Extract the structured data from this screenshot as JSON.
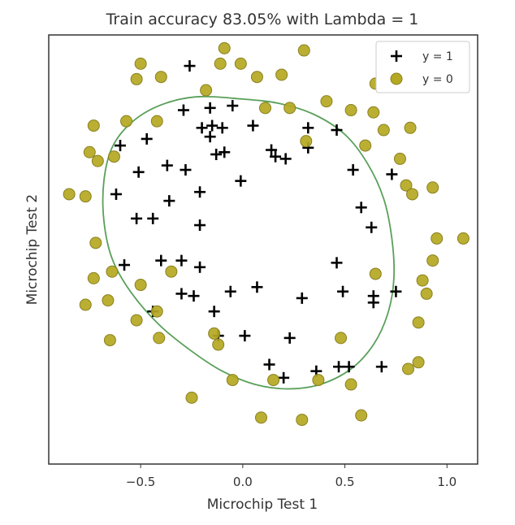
{
  "chart_data": {
    "type": "scatter",
    "title": "Train accuracy 83.05% with Lambda = 1",
    "xlabel": "Microchip Test 1",
    "ylabel": "Microchip Test 2",
    "xlim": [
      -0.95,
      1.15
    ],
    "ylim": [
      -0.82,
      1.12
    ],
    "xticks": [
      -0.5,
      0.0,
      0.5,
      1.0
    ],
    "xtick_labels": [
      "−0.5",
      "0.0",
      "0.5",
      "1.0"
    ],
    "yticks": [],
    "grid": false,
    "legend": {
      "position": "top-right",
      "entries": [
        {
          "label": "y = 1",
          "marker": "plus",
          "color": "#000000"
        },
        {
          "label": "y = 0",
          "marker": "circle",
          "color": "#b5a822"
        }
      ]
    },
    "series": [
      {
        "name": "y = 1",
        "marker": "plus",
        "color": "#000000",
        "points": [
          [
            -0.26,
            0.98
          ],
          [
            -0.29,
            0.78
          ],
          [
            -0.16,
            0.79
          ],
          [
            -0.05,
            0.8
          ],
          [
            -0.2,
            0.7
          ],
          [
            -0.15,
            0.71
          ],
          [
            -0.1,
            0.7
          ],
          [
            0.05,
            0.71
          ],
          [
            -0.47,
            0.65
          ],
          [
            -0.6,
            0.62
          ],
          [
            -0.16,
            0.66
          ],
          [
            -0.13,
            0.58
          ],
          [
            -0.09,
            0.59
          ],
          [
            0.14,
            0.6
          ],
          [
            0.16,
            0.57
          ],
          [
            0.21,
            0.56
          ],
          [
            0.32,
            0.7
          ],
          [
            0.32,
            0.61
          ],
          [
            0.46,
            0.69
          ],
          [
            -0.51,
            0.5
          ],
          [
            -0.37,
            0.53
          ],
          [
            -0.28,
            0.51
          ],
          [
            -0.01,
            0.46
          ],
          [
            0.54,
            0.51
          ],
          [
            0.73,
            0.49
          ],
          [
            -0.62,
            0.4
          ],
          [
            -0.36,
            0.37
          ],
          [
            -0.21,
            0.41
          ],
          [
            0.58,
            0.34
          ],
          [
            -0.52,
            0.29
          ],
          [
            -0.44,
            0.29
          ],
          [
            -0.21,
            0.26
          ],
          [
            0.63,
            0.25
          ],
          [
            -0.4,
            0.1
          ],
          [
            -0.3,
            0.1
          ],
          [
            -0.21,
            0.07
          ],
          [
            0.46,
            0.09
          ],
          [
            -0.58,
            0.08
          ],
          [
            0.64,
            -0.06
          ],
          [
            -0.3,
            -0.05
          ],
          [
            -0.24,
            -0.06
          ],
          [
            -0.06,
            -0.04
          ],
          [
            0.07,
            -0.02
          ],
          [
            0.29,
            -0.07
          ],
          [
            0.49,
            -0.04
          ],
          [
            0.75,
            -0.04
          ],
          [
            0.64,
            -0.09
          ],
          [
            -0.44,
            -0.13
          ],
          [
            -0.14,
            -0.13
          ],
          [
            -0.12,
            -0.24
          ],
          [
            0.01,
            -0.24
          ],
          [
            0.23,
            -0.25
          ],
          [
            0.13,
            -0.37
          ],
          [
            0.36,
            -0.4
          ],
          [
            0.47,
            -0.38
          ],
          [
            0.52,
            -0.38
          ],
          [
            0.68,
            -0.38
          ],
          [
            0.2,
            -0.43
          ]
        ]
      },
      {
        "name": "y = 0",
        "marker": "circle",
        "color": "#b5a822",
        "points": [
          [
            -0.09,
            1.06
          ],
          [
            0.3,
            1.05
          ],
          [
            -0.5,
            0.99
          ],
          [
            -0.11,
            0.99
          ],
          [
            -0.01,
            0.99
          ],
          [
            -0.52,
            0.92
          ],
          [
            -0.4,
            0.93
          ],
          [
            0.07,
            0.93
          ],
          [
            0.19,
            0.94
          ],
          [
            -0.18,
            0.87
          ],
          [
            0.65,
            0.9
          ],
          [
            0.41,
            0.82
          ],
          [
            0.11,
            0.79
          ],
          [
            0.23,
            0.79
          ],
          [
            0.53,
            0.78
          ],
          [
            0.64,
            0.77
          ],
          [
            -0.57,
            0.73
          ],
          [
            -0.42,
            0.73
          ],
          [
            -0.73,
            0.71
          ],
          [
            0.69,
            0.69
          ],
          [
            0.82,
            0.7
          ],
          [
            0.31,
            0.64
          ],
          [
            0.6,
            0.62
          ],
          [
            -0.75,
            0.59
          ],
          [
            -0.63,
            0.57
          ],
          [
            0.77,
            0.56
          ],
          [
            -0.71,
            0.55
          ],
          [
            0.8,
            0.44
          ],
          [
            -0.85,
            0.4
          ],
          [
            -0.77,
            0.39
          ],
          [
            0.83,
            0.4
          ],
          [
            0.93,
            0.43
          ],
          [
            -0.72,
            0.18
          ],
          [
            0.95,
            0.2
          ],
          [
            1.08,
            0.2
          ],
          [
            0.93,
            0.1
          ],
          [
            -0.35,
            0.05
          ],
          [
            0.65,
            0.04
          ],
          [
            -0.64,
            0.05
          ],
          [
            -0.73,
            0.02
          ],
          [
            0.88,
            0.01
          ],
          [
            -0.5,
            -0.01
          ],
          [
            -0.66,
            -0.08
          ],
          [
            -0.77,
            -0.1
          ],
          [
            0.9,
            -0.05
          ],
          [
            -0.42,
            -0.13
          ],
          [
            -0.52,
            -0.17
          ],
          [
            0.86,
            -0.18
          ],
          [
            -0.14,
            -0.23
          ],
          [
            0.48,
            -0.25
          ],
          [
            -0.12,
            -0.28
          ],
          [
            -0.65,
            -0.26
          ],
          [
            -0.41,
            -0.25
          ],
          [
            0.86,
            -0.36
          ],
          [
            0.81,
            -0.39
          ],
          [
            -0.05,
            -0.44
          ],
          [
            0.15,
            -0.44
          ],
          [
            0.37,
            -0.44
          ],
          [
            0.53,
            -0.46
          ],
          [
            -0.25,
            -0.52
          ],
          [
            0.09,
            -0.61
          ],
          [
            0.29,
            -0.62
          ],
          [
            0.58,
            -0.6
          ]
        ]
      }
    ],
    "decision_boundary": {
      "color": "#5aa05a",
      "points": [
        [
          0.0,
          0.83
        ],
        [
          0.18,
          0.81
        ],
        [
          0.35,
          0.76
        ],
        [
          0.5,
          0.67
        ],
        [
          0.61,
          0.54
        ],
        [
          0.69,
          0.38
        ],
        [
          0.73,
          0.2
        ],
        [
          0.74,
          0.02
        ],
        [
          0.71,
          -0.14
        ],
        [
          0.64,
          -0.28
        ],
        [
          0.53,
          -0.39
        ],
        [
          0.38,
          -0.46
        ],
        [
          0.22,
          -0.48
        ],
        [
          0.06,
          -0.46
        ],
        [
          -0.1,
          -0.4
        ],
        [
          -0.25,
          -0.31
        ],
        [
          -0.41,
          -0.19
        ],
        [
          -0.55,
          -0.04
        ],
        [
          -0.64,
          0.11
        ],
        [
          -0.68,
          0.28
        ],
        [
          -0.68,
          0.46
        ],
        [
          -0.64,
          0.61
        ],
        [
          -0.55,
          0.72
        ],
        [
          -0.41,
          0.8
        ],
        [
          -0.23,
          0.84
        ],
        [
          0.0,
          0.83
        ]
      ]
    }
  }
}
